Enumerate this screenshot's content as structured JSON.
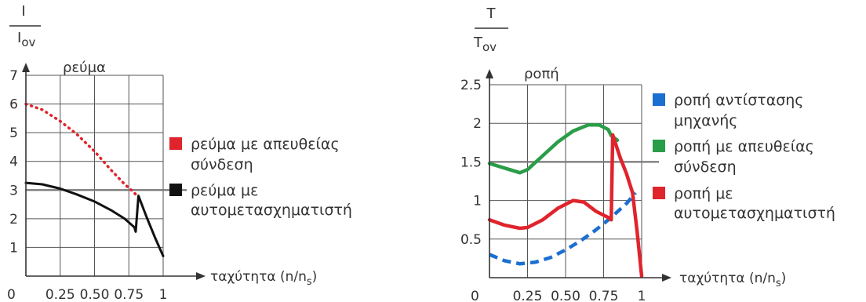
{
  "chart_data": [
    {
      "type": "line",
      "ylabel_num": "I",
      "ylabel_den": "I",
      "ylabel_den_sub": "ov",
      "title": "ρεύμα",
      "xlabel": "ταχύτητα (n/n",
      "xlabel_sub": "s",
      "xlabel_close": ")",
      "xlim": [
        0,
        1
      ],
      "ylim": [
        0,
        7
      ],
      "xticks": [
        "0",
        "0.25",
        "0.50",
        "0.75",
        "1"
      ],
      "yticks": [
        "1",
        "2",
        "3",
        "4",
        "5",
        "6",
        "7"
      ],
      "hline": 3,
      "series": [
        {
          "name": "ρεύμα με απευθείας σύνδεση",
          "color": "#e0242c",
          "style": "dotted",
          "x": [
            0,
            0.12,
            0.25,
            0.37,
            0.5,
            0.62,
            0.72,
            0.78,
            0.8
          ],
          "y": [
            6.0,
            5.8,
            5.4,
            4.95,
            4.35,
            3.7,
            3.2,
            2.95,
            2.85
          ]
        },
        {
          "name": "ρεύμα με αυτομετασχηματιστή",
          "color": "#111111",
          "style": "solid",
          "x": [
            0,
            0.12,
            0.25,
            0.37,
            0.5,
            0.62,
            0.72,
            0.79,
            0.8,
            0.82,
            0.88,
            0.94,
            1.0
          ],
          "y": [
            3.25,
            3.2,
            3.05,
            2.85,
            2.6,
            2.3,
            2.0,
            1.7,
            1.55,
            2.8,
            2.05,
            1.35,
            0.7
          ]
        }
      ],
      "legend": [
        "ρεύμα με απευθείας",
        "σύνδεση",
        "ρεύμα με",
        "αυτομετασχηματιστή"
      ]
    },
    {
      "type": "line",
      "ylabel_num": "T",
      "ylabel_den": "T",
      "ylabel_den_sub": "ov",
      "title": "ροπή",
      "xlabel": "ταχύτητα (n/n",
      "xlabel_sub": "s",
      "xlabel_close": ")",
      "xlim": [
        0,
        1
      ],
      "ylim": [
        0,
        2.5
      ],
      "xticks": [
        "0",
        "0.25",
        "0.50",
        "0.75",
        "1"
      ],
      "yticks": [
        "0.5",
        "1",
        "1.5",
        "2",
        "2.5"
      ],
      "hline": 1.5,
      "series": [
        {
          "name": "ροπή αντίστασης μηχανής",
          "color": "#1b6fd1",
          "style": "dashed",
          "x": [
            0,
            0.1,
            0.2,
            0.3,
            0.4,
            0.5,
            0.6,
            0.7,
            0.8,
            0.9,
            0.96
          ],
          "y": [
            0.3,
            0.22,
            0.18,
            0.2,
            0.26,
            0.36,
            0.48,
            0.62,
            0.78,
            0.96,
            1.1
          ]
        },
        {
          "name": "ροπή με απευθείας σύνδεση",
          "color": "#2a9d48",
          "style": "solid",
          "x": [
            0,
            0.1,
            0.2,
            0.25,
            0.35,
            0.45,
            0.55,
            0.65,
            0.72,
            0.78,
            0.8,
            0.84
          ],
          "y": [
            1.48,
            1.42,
            1.36,
            1.4,
            1.58,
            1.76,
            1.9,
            1.98,
            1.98,
            1.92,
            1.84,
            1.78
          ]
        },
        {
          "name": "ροπή με αυτομετασχηματιστή",
          "color": "#e0242c",
          "style": "solid",
          "x": [
            0,
            0.1,
            0.2,
            0.25,
            0.35,
            0.45,
            0.55,
            0.62,
            0.7,
            0.78,
            0.8,
            0.81,
            0.86,
            0.9,
            0.94,
            0.97,
            1.0
          ],
          "y": [
            0.75,
            0.68,
            0.64,
            0.65,
            0.75,
            0.9,
            1.0,
            0.98,
            0.86,
            0.78,
            0.75,
            1.85,
            1.55,
            1.35,
            1.1,
            0.6,
            0.02
          ]
        }
      ],
      "legend": [
        "ροπή αντίστασης",
        "μηχανής",
        "ροπή με απευθείας",
        "σύνδεση",
        "ροπή με",
        "αυτομετασχηματιστή"
      ]
    }
  ]
}
